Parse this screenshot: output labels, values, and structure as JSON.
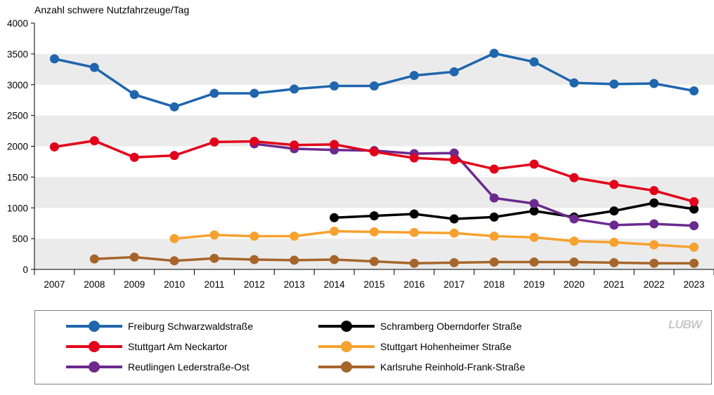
{
  "chart_data": {
    "type": "line",
    "ylabel": "Anzahl schwere Nutzfahrzeuge/Tag",
    "xlabel": "",
    "title": "",
    "ylim": [
      0,
      4000
    ],
    "yticks": [
      0,
      500,
      1000,
      1500,
      2000,
      2500,
      3000,
      3500,
      4000
    ],
    "categories": [
      "2007",
      "2008",
      "2009",
      "2010",
      "2011",
      "2012",
      "2013",
      "2014",
      "2015",
      "2016",
      "2017",
      "2018",
      "2019",
      "2020",
      "2021",
      "2022",
      "2023"
    ],
    "grid": "alternating horizontal bands",
    "legend_position": "bottom",
    "series": [
      {
        "name": "Freiburg Schwarzwaldstraße",
        "color": "#1f66ae",
        "values": [
          3420,
          3280,
          2840,
          2640,
          2860,
          2860,
          2930,
          2980,
          2980,
          3150,
          3210,
          3510,
          3370,
          3030,
          3010,
          3020,
          2900
        ]
      },
      {
        "name": "Stuttgart Am Neckartor",
        "color": "#e2001a",
        "values": [
          1990,
          2090,
          1820,
          1850,
          2070,
          2080,
          2020,
          2030,
          1910,
          1810,
          1780,
          1630,
          1710,
          1490,
          1380,
          1280,
          1100
        ]
      },
      {
        "name": "Reutlingen Lederstraße-Ost",
        "color": "#6b2a8e",
        "values": [
          null,
          null,
          null,
          null,
          null,
          2040,
          1960,
          1940,
          1930,
          1880,
          1890,
          1160,
          1070,
          820,
          720,
          740,
          710
        ]
      },
      {
        "name": "Schramberg Oberndorfer Straße",
        "color": "#000000",
        "values": [
          null,
          null,
          null,
          null,
          null,
          null,
          null,
          840,
          870,
          900,
          820,
          850,
          950,
          850,
          950,
          1080,
          980
        ]
      },
      {
        "name": "Stuttgart Hohenheimer Straße",
        "color": "#f7a12f",
        "values": [
          null,
          null,
          null,
          500,
          560,
          540,
          540,
          620,
          610,
          600,
          590,
          540,
          520,
          460,
          440,
          400,
          360
        ]
      },
      {
        "name": "Karlsruhe Reinhold-Frank-Straße",
        "color": "#a6652a",
        "values": [
          null,
          170,
          200,
          140,
          180,
          160,
          150,
          160,
          130,
          100,
          110,
          120,
          120,
          120,
          110,
          100,
          100
        ]
      }
    ]
  },
  "legend": {
    "items": [
      {
        "label": "Freiburg Schwarzwaldstraße",
        "color": "#1f66ae"
      },
      {
        "label": "Stuttgart Am Neckartor",
        "color": "#e2001a"
      },
      {
        "label": "Reutlingen Lederstraße-Ost",
        "color": "#6b2a8e"
      },
      {
        "label": "Schramberg Oberndorfer Straße",
        "color": "#000000"
      },
      {
        "label": "Stuttgart Hohenheimer Straße",
        "color": "#f7a12f"
      },
      {
        "label": "Karlsruhe Reinhold-Frank-Straße",
        "color": "#a6652a"
      }
    ]
  },
  "logo": {
    "text": "LUBW"
  }
}
